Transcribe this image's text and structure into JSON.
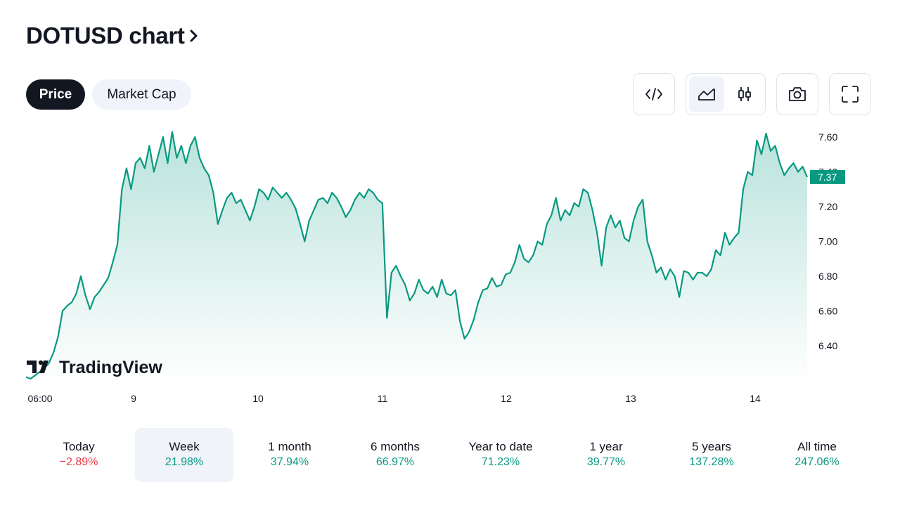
{
  "header": {
    "title": "DOTUSD chart"
  },
  "tabs": [
    {
      "label": "Price",
      "active": true
    },
    {
      "label": "Market Cap",
      "active": false
    }
  ],
  "toolbar": {
    "icons": [
      "embed-code-icon",
      "area-chart-icon",
      "candles-icon",
      "camera-icon",
      "fullscreen-icon"
    ]
  },
  "colors": {
    "line": "#089981",
    "negative": "#f23645",
    "dark": "#131722"
  },
  "chart_data": {
    "type": "area",
    "watermark": "TradingView",
    "current_price": "7.37",
    "y_ticks": [
      "7.60",
      "7.40",
      "7.20",
      "7.00",
      "6.80",
      "6.60",
      "6.40"
    ],
    "x_ticks": [
      "06:00",
      "9",
      "10",
      "11",
      "12",
      "13",
      "14"
    ],
    "ylim": [
      6.2,
      7.65
    ],
    "series": [
      {
        "values": [
          6.22,
          6.21,
          6.23,
          6.25,
          6.27,
          6.3,
          6.36,
          6.45,
          6.6,
          6.63,
          6.65,
          6.7,
          6.8,
          6.69,
          6.61,
          6.68,
          6.71,
          6.75,
          6.79,
          6.88,
          6.98,
          7.3,
          7.42,
          7.3,
          7.45,
          7.48,
          7.42,
          7.55,
          7.4,
          7.5,
          7.6,
          7.45,
          7.63,
          7.48,
          7.55,
          7.45,
          7.55,
          7.6,
          7.48,
          7.42,
          7.38,
          7.28,
          7.1,
          7.18,
          7.25,
          7.28,
          7.22,
          7.24,
          7.18,
          7.12,
          7.2,
          7.3,
          7.28,
          7.24,
          7.31,
          7.28,
          7.25,
          7.28,
          7.24,
          7.19,
          7.1,
          7.0,
          7.12,
          7.18,
          7.24,
          7.25,
          7.22,
          7.28,
          7.25,
          7.2,
          7.14,
          7.18,
          7.24,
          7.28,
          7.25,
          7.3,
          7.28,
          7.24,
          7.22,
          6.56,
          6.82,
          6.86,
          6.8,
          6.75,
          6.66,
          6.7,
          6.78,
          6.72,
          6.7,
          6.74,
          6.68,
          6.78,
          6.7,
          6.69,
          6.72,
          6.54,
          6.44,
          6.48,
          6.55,
          6.65,
          6.72,
          6.73,
          6.79,
          6.74,
          6.75,
          6.81,
          6.82,
          6.88,
          6.98,
          6.9,
          6.88,
          6.92,
          7.0,
          6.98,
          7.1,
          7.15,
          7.25,
          7.12,
          7.18,
          7.15,
          7.22,
          7.2,
          7.3,
          7.28,
          7.18,
          7.05,
          6.86,
          7.08,
          7.15,
          7.08,
          7.12,
          7.02,
          7.0,
          7.12,
          7.2,
          7.24,
          7.0,
          6.92,
          6.82,
          6.85,
          6.78,
          6.84,
          6.8,
          6.68,
          6.83,
          6.82,
          6.78,
          6.82,
          6.82,
          6.8,
          6.84,
          6.95,
          6.92,
          7.05,
          6.98,
          7.02,
          7.05,
          7.3,
          7.4,
          7.38,
          7.58,
          7.5,
          7.62,
          7.52,
          7.55,
          7.45,
          7.38,
          7.42,
          7.45,
          7.4,
          7.43,
          7.37
        ]
      }
    ]
  },
  "periods": [
    {
      "label": "Today",
      "value": "−2.89%",
      "tone": "neg",
      "active": false
    },
    {
      "label": "Week",
      "value": "21.98%",
      "tone": "pos",
      "active": true
    },
    {
      "label": "1 month",
      "value": "37.94%",
      "tone": "pos",
      "active": false
    },
    {
      "label": "6 months",
      "value": "66.97%",
      "tone": "pos",
      "active": false
    },
    {
      "label": "Year to date",
      "value": "71.23%",
      "tone": "pos",
      "active": false
    },
    {
      "label": "1 year",
      "value": "39.77%",
      "tone": "pos",
      "active": false
    },
    {
      "label": "5 years",
      "value": "137.28%",
      "tone": "pos",
      "active": false
    },
    {
      "label": "All time",
      "value": "247.06%",
      "tone": "pos",
      "active": false
    }
  ]
}
